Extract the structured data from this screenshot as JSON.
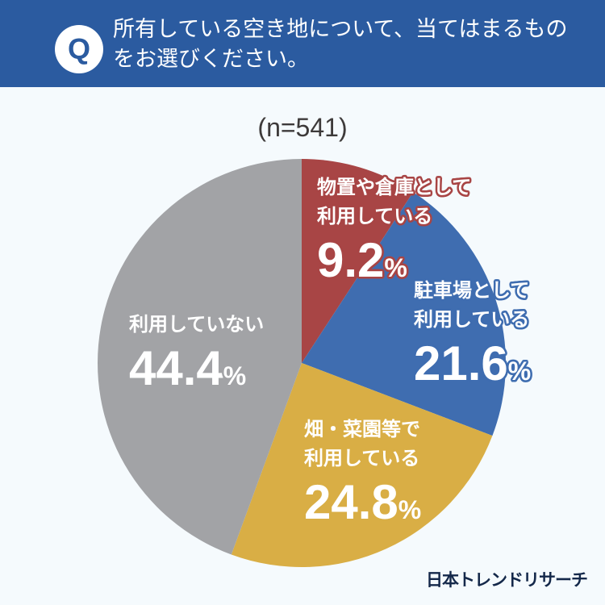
{
  "header": {
    "badge": "Q",
    "question": "所有している空き地について、当てはまるものをお選びください。"
  },
  "sample": "(n=541)",
  "logo": "日本トレンドリサーチ",
  "chart_data": {
    "type": "pie",
    "title": "所有している空き地について、当てはまるものをお選びください。",
    "subtitle": "(n=541)",
    "unit": "%",
    "slices": [
      {
        "line1": "物置や倉庫として",
        "line2": "利用している",
        "label": "物置や倉庫として利用している",
        "value": 9.2,
        "value_text": "9.2",
        "color": "#a84545"
      },
      {
        "line1": "駐車場として",
        "line2": "利用している",
        "label": "駐車場として利用している",
        "value": 21.6,
        "value_text": "21.6",
        "color": "#3f6db0"
      },
      {
        "line1": "畑・菜園等で",
        "line2": "利用している",
        "label": "畑・菜園等で利用している",
        "value": 24.8,
        "value_text": "24.8",
        "color": "#d9ae45"
      },
      {
        "line1": "利用していない",
        "line2": "",
        "label": "利用していない",
        "value": 44.4,
        "value_text": "44.4",
        "color": "#a2a3a6"
      }
    ],
    "pct_sign": "%"
  }
}
